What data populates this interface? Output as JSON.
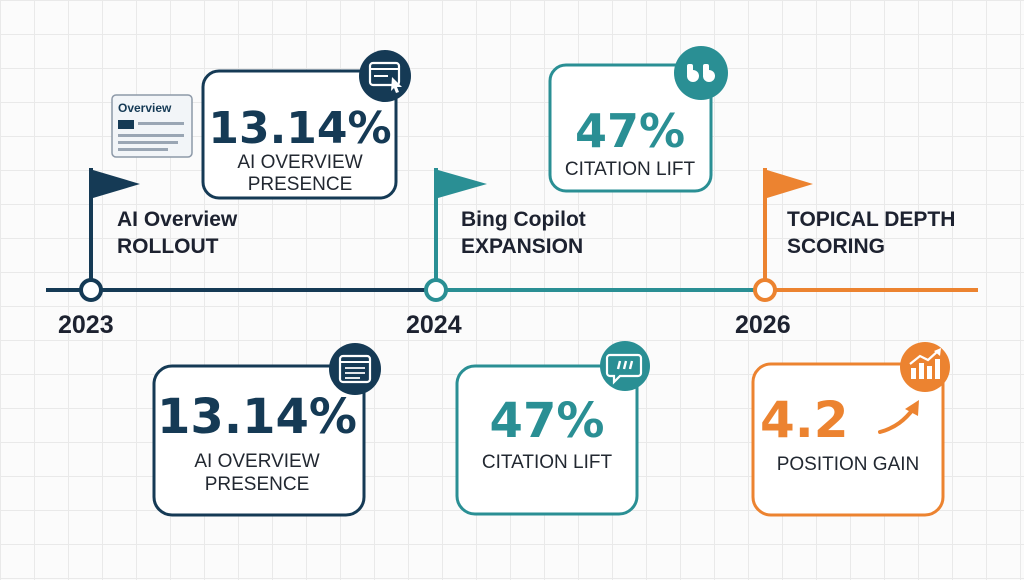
{
  "colors": {
    "navy": "#153a55",
    "teal": "#2a8f94",
    "orange": "#ec8330",
    "text": "#1d2230",
    "grid": "#e9e9e9"
  },
  "milestones": [
    {
      "year": "2023",
      "event_line1": "AI Overview",
      "event_line2": "ROLLOUT",
      "mini_card_label": "Overview"
    },
    {
      "year": "2024",
      "event_line1": "Bing Copilot",
      "event_line2": "EXPANSION"
    },
    {
      "year": "2026",
      "event_line1": "TOPICAL DEPTH",
      "event_line2": "SCORING"
    }
  ],
  "top_cards": [
    {
      "value": "13.14%",
      "caption_line1": "AI OVERVIEW",
      "caption_line2": "PRESENCE",
      "icon": "browser-cursor-icon"
    },
    {
      "value": "47%",
      "caption_line1": "CITATION LIFT",
      "icon": "quote-icon"
    }
  ],
  "bottom_cards": [
    {
      "value": "13.14%",
      "caption_line1": "AI OVERVIEW",
      "caption_line2": "PRESENCE",
      "icon": "browser-window-icon"
    },
    {
      "value": "47%",
      "caption_line1": "CITATION LIFT",
      "icon": "speech-quote-icon"
    },
    {
      "value": "4.2",
      "caption_line1": "POSITION GAIN",
      "icon": "growth-chart-icon"
    }
  ]
}
